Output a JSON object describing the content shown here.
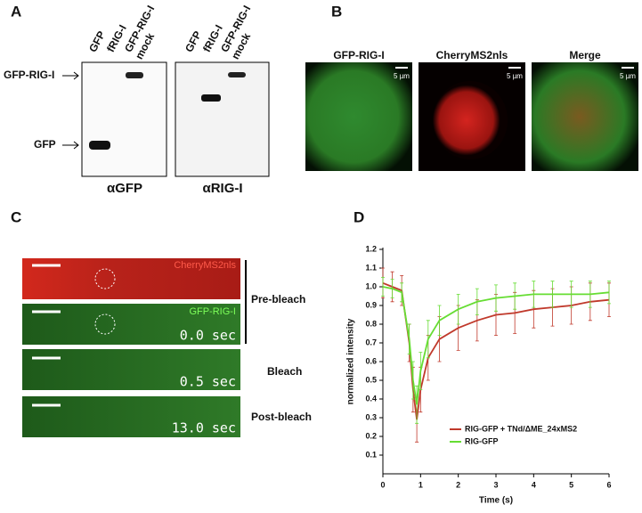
{
  "panels": {
    "A": {
      "letter": "A",
      "blots": [
        {
          "antibody": "αGFP",
          "lanes": [
            "GFP",
            "fRIG-I",
            "GFP-RIG-I",
            "mock"
          ]
        },
        {
          "antibody": "αRIG-I",
          "lanes": [
            "GFP",
            "fRIG-I",
            "GFP-RIG-I",
            "mock"
          ]
        }
      ],
      "markers": [
        "GFP-RIG-I",
        "GFP"
      ]
    },
    "B": {
      "letter": "B",
      "images": [
        {
          "title": "GFP-RIG-I",
          "scale": "5 µm"
        },
        {
          "title": "CherryMS2nls",
          "scale": "5 µm"
        },
        {
          "title": "Merge",
          "scale": "5 µm"
        }
      ]
    },
    "C": {
      "letter": "C",
      "channels": [
        "CherryMS2nls",
        "GFP-RIG-I"
      ],
      "times": [
        "0.0 sec",
        "0.5 sec",
        "13.0 sec"
      ],
      "phases": [
        "Pre-bleach",
        "Bleach",
        "Post-bleach"
      ]
    }
  },
  "chart_data": {
    "type": "line",
    "panel_letter": "D",
    "x_label": "Time (s)",
    "y_label": "normalized intensity",
    "x": [
      0,
      0.25,
      0.5,
      0.7,
      0.8,
      0.9,
      1.0,
      1.2,
      1.5,
      2,
      2.5,
      3,
      3.5,
      4,
      4.5,
      5,
      5.5,
      6
    ],
    "series": [
      {
        "name": "RIG-GFP + TNd/ΔME_24xMS2",
        "color": "#c0392b",
        "values": [
          1.02,
          1.0,
          0.98,
          0.7,
          0.45,
          0.29,
          0.45,
          0.62,
          0.72,
          0.78,
          0.82,
          0.85,
          0.86,
          0.88,
          0.89,
          0.9,
          0.92,
          0.93
        ],
        "errors": [
          0.08,
          0.08,
          0.08,
          0.1,
          0.12,
          0.12,
          0.12,
          0.12,
          0.12,
          0.12,
          0.11,
          0.11,
          0.11,
          0.1,
          0.1,
          0.1,
          0.1,
          0.09
        ]
      },
      {
        "name": "RIG-GFP",
        "color": "#66dd33",
        "values": [
          1.0,
          0.99,
          0.97,
          0.72,
          0.5,
          0.37,
          0.55,
          0.72,
          0.82,
          0.88,
          0.92,
          0.94,
          0.95,
          0.96,
          0.96,
          0.96,
          0.96,
          0.97
        ],
        "errors": [
          0.05,
          0.05,
          0.05,
          0.08,
          0.1,
          0.1,
          0.1,
          0.1,
          0.08,
          0.08,
          0.07,
          0.07,
          0.07,
          0.07,
          0.07,
          0.07,
          0.07,
          0.06
        ]
      }
    ],
    "xlim": [
      0,
      6
    ],
    "xticks": [
      0,
      1,
      2,
      3,
      4,
      5,
      6
    ],
    "ylim": [
      0,
      1.2
    ],
    "yticks": [
      0.1,
      0.2,
      0.3,
      0.4,
      0.5,
      0.6,
      0.7,
      0.8,
      0.9,
      {
        "value": 1,
        "label": "1.0"
      },
      1.1,
      1.2
    ]
  }
}
